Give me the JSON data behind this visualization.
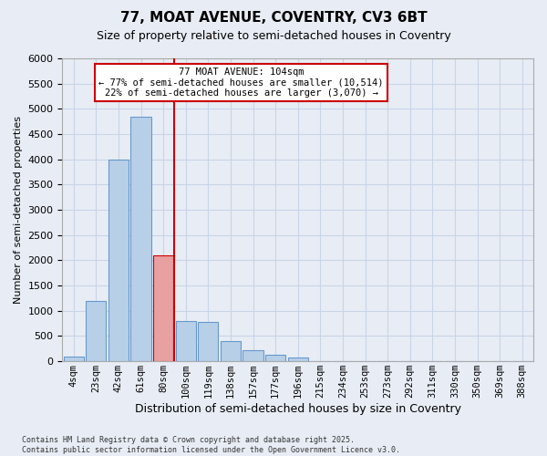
{
  "title1": "77, MOAT AVENUE, COVENTRY, CV3 6BT",
  "title2": "Size of property relative to semi-detached houses in Coventry",
  "xlabel": "Distribution of semi-detached houses by size in Coventry",
  "ylabel": "Number of semi-detached properties",
  "bins": [
    "4sqm",
    "23sqm",
    "42sqm",
    "61sqm",
    "80sqm",
    "100sqm",
    "119sqm",
    "138sqm",
    "157sqm",
    "177sqm",
    "196sqm",
    "215sqm",
    "234sqm",
    "253sqm",
    "273sqm",
    "292sqm",
    "311sqm",
    "330sqm",
    "350sqm",
    "369sqm",
    "388sqm"
  ],
  "values": [
    100,
    1200,
    4000,
    4850,
    2100,
    800,
    780,
    400,
    220,
    130,
    70,
    5,
    0,
    0,
    0,
    0,
    0,
    0,
    0,
    0,
    0
  ],
  "bar_color": "#b8cfe8",
  "bar_edge_color": "#6699cc",
  "highlight_bar_index": 4,
  "highlight_color": "#e8a0a0",
  "highlight_edge_color": "#cc0000",
  "vline_x": 4.5,
  "vline_color": "#cc0000",
  "annotation_text": "77 MOAT AVENUE: 104sqm\n← 77% of semi-detached houses are smaller (10,514)\n22% of semi-detached houses are larger (3,070) →",
  "annotation_box_color": "#ffffff",
  "annotation_box_edge_color": "#cc0000",
  "ylim": [
    0,
    6000
  ],
  "yticks": [
    0,
    500,
    1000,
    1500,
    2000,
    2500,
    3000,
    3500,
    4000,
    4500,
    5000,
    5500,
    6000
  ],
  "grid_color": "#c8d4e8",
  "bg_color": "#e8edf5",
  "footer": "Contains HM Land Registry data © Crown copyright and database right 2025.\nContains public sector information licensed under the Open Government Licence v3.0."
}
